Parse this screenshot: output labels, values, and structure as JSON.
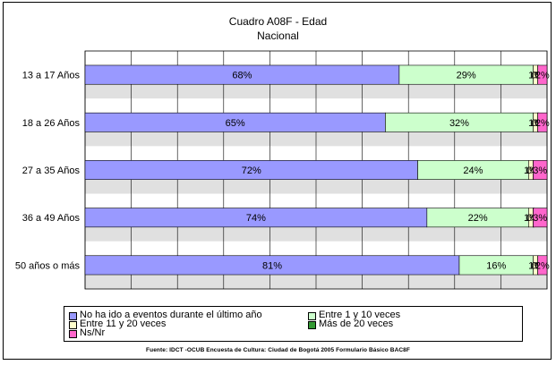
{
  "chart_data": {
    "type": "bar",
    "orientation": "horizontal",
    "stacked": "percent",
    "title": "Cuadro A08F - Edad",
    "subtitle": "Nacional",
    "categories": [
      "13 a 17 Años",
      "18 a 26 Años",
      "27 a 35 Años",
      "36 a 49 Años",
      "50 años o más"
    ],
    "series": [
      {
        "name": "No ha ido a eventos durante el último año",
        "color": "#9999ff",
        "values": [
          68,
          65,
          72,
          74,
          81
        ],
        "labels": [
          "68%",
          "65%",
          "72%",
          "74%",
          "81%"
        ]
      },
      {
        "name": "Entre 1 y 10 veces",
        "color": "#ccffcc",
        "values": [
          29,
          32,
          24,
          22,
          16
        ],
        "labels": [
          "29%",
          "32%",
          "24%",
          "22%",
          "16%"
        ]
      },
      {
        "name": "Entre 11 y 20 veces",
        "color": "#ffffcc",
        "values": [
          1,
          1,
          1,
          1,
          1
        ],
        "labels": [
          "1%",
          "1%",
          "1%",
          "1%",
          "1%"
        ]
      },
      {
        "name": "Más de 20 veces",
        "color": "#339933",
        "values": [
          0,
          0,
          0,
          0,
          0
        ],
        "labels": [
          "0%",
          "0%",
          "0%",
          "0%",
          "0%"
        ]
      },
      {
        "name": "Ns/Nr",
        "color": "#ff66cc",
        "values": [
          2,
          2,
          3,
          3,
          2
        ],
        "labels": [
          "2%",
          "2%",
          "3%",
          "3%",
          "2%"
        ]
      }
    ],
    "xlim": [
      0,
      100
    ],
    "grid": true,
    "legend_position": "bottom"
  },
  "legend": {
    "items": [
      {
        "label": "No ha ido a eventos durante el último año",
        "color": "#9999ff"
      },
      {
        "label": "Entre 1 y 10 veces",
        "color": "#ccffcc"
      },
      {
        "label": "Entre 11 y 20 veces",
        "color": "#ffffcc"
      },
      {
        "label": "Más de 20 veces",
        "color": "#339933"
      },
      {
        "label": "Ns/Nr",
        "color": "#ff66cc"
      }
    ]
  },
  "source_note": "Fuente: IDCT -OCUB Encuesta de Cultura: Ciudad de Bogotá 2005 Formulario Básico BAC8F",
  "colors": {
    "plot_band_light": "#ffffff",
    "plot_band_dark": "#e0e0e0",
    "grid": "#000000"
  }
}
